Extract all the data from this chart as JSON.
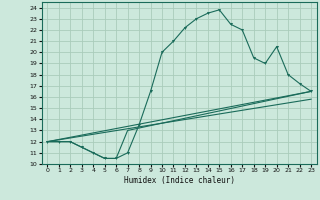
{
  "xlabel": "Humidex (Indice chaleur)",
  "xlim": [
    -0.5,
    23.5
  ],
  "ylim": [
    10,
    24.5
  ],
  "xticks": [
    0,
    1,
    2,
    3,
    4,
    5,
    6,
    7,
    8,
    9,
    10,
    11,
    12,
    13,
    14,
    15,
    16,
    17,
    18,
    19,
    20,
    21,
    22,
    23
  ],
  "yticks": [
    10,
    11,
    12,
    13,
    14,
    15,
    16,
    17,
    18,
    19,
    20,
    21,
    22,
    23,
    24
  ],
  "bg_color": "#cce8dc",
  "grid_color": "#aaccbb",
  "line_color": "#1a6b5a",
  "curve1_x": [
    0,
    1,
    2,
    3,
    4,
    5,
    6,
    7,
    8,
    9,
    10,
    11,
    12,
    13,
    14,
    15,
    16,
    17,
    18,
    19,
    20,
    21,
    22,
    23
  ],
  "curve1_y": [
    12,
    12,
    12,
    11.5,
    11,
    10.5,
    10.5,
    11,
    13.5,
    16.5,
    20,
    21,
    22.2,
    23,
    23.5,
    23.8,
    22.5,
    22,
    19.5,
    19,
    20.5,
    18,
    17.2,
    16.5
  ],
  "curve2_x": [
    0,
    2,
    3,
    4,
    5,
    6,
    7,
    23
  ],
  "curve2_y": [
    12,
    12,
    11.5,
    11,
    10.5,
    10.5,
    13,
    16.5
  ],
  "curve3_x": [
    0,
    23
  ],
  "curve3_y": [
    12,
    16.5
  ],
  "curve4_x": [
    0,
    23
  ],
  "curve4_y": [
    12,
    15.8
  ]
}
